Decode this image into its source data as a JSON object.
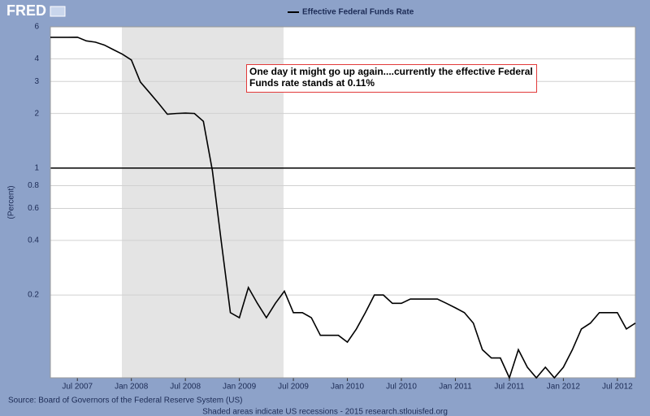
{
  "chart_data": {
    "type": "line",
    "logo": "FRED",
    "title": "Effective Federal Funds Rate",
    "y_label": "(Percent)",
    "source": "Source: Board of Governors of the Federal Reserve System (US)",
    "footnote": "Shaded areas indicate US recessions - 2015 research.stlouisfed.org",
    "annotation": "One day it might go up again....currently the effective Federal Funds rate stands at 0.11%",
    "log_scale": true,
    "grid": true,
    "hline": 1,
    "ylim": [
      0.07,
      6
    ],
    "yticks": [
      0.2,
      0.4,
      0.6,
      0.8,
      1,
      2,
      3,
      4,
      6
    ],
    "categories": [
      null,
      null,
      null,
      "Jul 2007",
      null,
      null,
      null,
      null,
      null,
      "Jan 2008",
      null,
      null,
      null,
      null,
      null,
      "Jul 2008",
      null,
      null,
      null,
      null,
      null,
      "Jan 2009",
      null,
      null,
      null,
      null,
      null,
      "Jul 2009",
      null,
      null,
      null,
      null,
      null,
      "Jan 2010",
      null,
      null,
      null,
      null,
      null,
      "Jul 2010",
      null,
      null,
      null,
      null,
      null,
      "Jan 2011",
      null,
      null,
      null,
      null,
      null,
      "Jul 2011",
      null,
      null,
      null,
      null,
      null,
      "Jan 2012",
      null,
      null,
      null,
      null,
      null,
      "Jul 2012",
      null,
      null
    ],
    "series": [
      {
        "name": "Effective Federal Funds Rate",
        "color": "#000000",
        "values": [
          5.25,
          5.25,
          5.25,
          5.26,
          5.02,
          4.94,
          4.76,
          4.49,
          4.24,
          3.94,
          2.98,
          2.61,
          2.28,
          1.98,
          2.0,
          2.01,
          2.0,
          1.81,
          0.97,
          0.39,
          0.16,
          0.15,
          0.22,
          0.18,
          0.15,
          0.18,
          0.21,
          0.16,
          0.16,
          0.15,
          0.12,
          0.12,
          0.12,
          0.11,
          0.13,
          0.16,
          0.2,
          0.2,
          0.18,
          0.18,
          0.19,
          0.19,
          0.19,
          0.19,
          0.18,
          0.17,
          0.16,
          0.14,
          0.1,
          0.09,
          0.09,
          0.07,
          0.1,
          0.08,
          0.07,
          0.08,
          0.07,
          0.08,
          0.1,
          0.13,
          0.14,
          0.16,
          0.16,
          0.16,
          0.13,
          0.14
        ]
      }
    ]
  }
}
